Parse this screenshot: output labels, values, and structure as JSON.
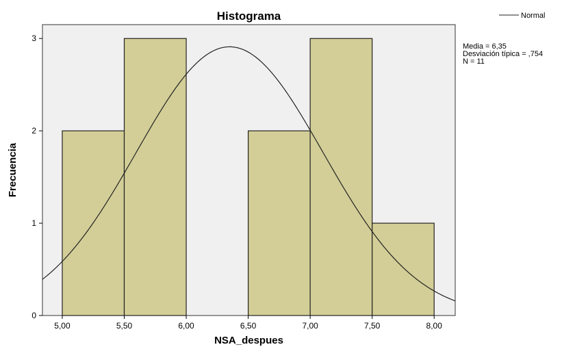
{
  "chart_data": {
    "type": "bar",
    "title": "Histograma",
    "xlabel": "NSA_despues",
    "ylabel": "Frecuencia",
    "xlim": [
      4.84,
      8.17
    ],
    "ylim": [
      0,
      3.15
    ],
    "bins": [
      {
        "start": 5.0,
        "end": 5.5,
        "count": 2
      },
      {
        "start": 5.5,
        "end": 6.0,
        "count": 3
      },
      {
        "start": 6.0,
        "end": 6.5,
        "count": 0
      },
      {
        "start": 6.5,
        "end": 7.0,
        "count": 2
      },
      {
        "start": 7.0,
        "end": 7.5,
        "count": 3
      },
      {
        "start": 7.5,
        "end": 8.0,
        "count": 1
      }
    ],
    "x_ticks": [
      5.0,
      5.5,
      6.0,
      6.5,
      7.0,
      7.5,
      8.0
    ],
    "x_tick_labels": [
      "5,00",
      "5,50",
      "6,00",
      "6,50",
      "7,00",
      "7,50",
      "8,00"
    ],
    "y_ticks": [
      0,
      1,
      2,
      3
    ],
    "y_tick_labels": [
      "0",
      "1",
      "2",
      "3"
    ],
    "normal_curve": {
      "name": "Normal",
      "mean": 6.35,
      "sd": 0.754,
      "n": 11,
      "bin_width": 0.5
    },
    "stats": [
      "Media = 6,35",
      "Desviación típica = ,754",
      "N = 11"
    ],
    "legend": [
      "Normal"
    ],
    "legend_position": "top-right",
    "grid": false,
    "colors": {
      "plot_bg": "#f0f0f0",
      "bar_fill": "#d3ce97",
      "bar_stroke": "#222222",
      "curve": "#222222"
    }
  }
}
